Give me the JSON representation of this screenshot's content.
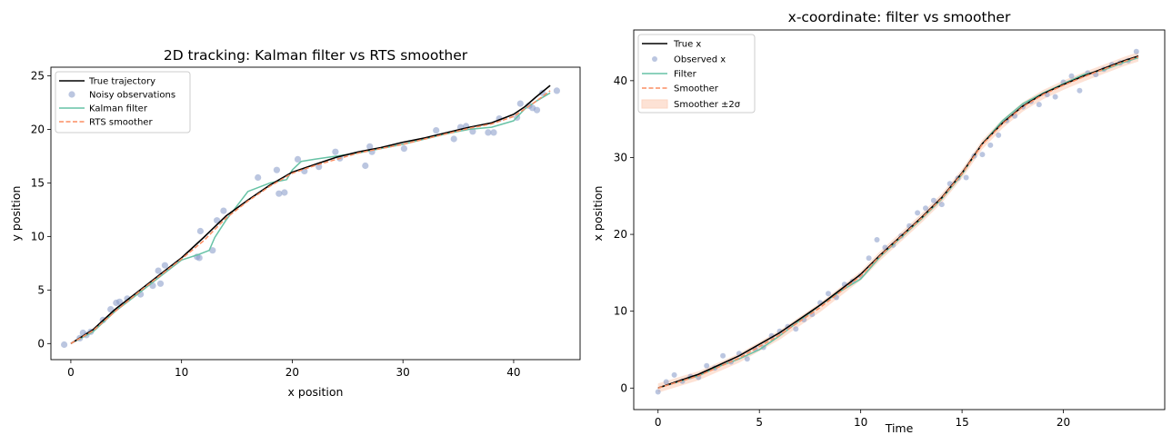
{
  "chart_data": [
    {
      "type": "line",
      "title": "2D tracking: Kalman filter vs RTS smoother",
      "xlabel": "x position",
      "ylabel": "y position",
      "xlim": [
        -1.8,
        46
      ],
      "ylim": [
        -1.5,
        25.8
      ],
      "xticks": [
        0,
        10,
        20,
        30,
        40
      ],
      "yticks": [
        0,
        5,
        10,
        15,
        20,
        25
      ],
      "grid": false,
      "legend_position": "top-left",
      "colors": {
        "truth": "#000000",
        "obs": "#8da0cb",
        "filter": "#66c2a5",
        "smoother": "#fc8d62"
      },
      "legend": [
        "True trajectory",
        "Noisy observations",
        "Kalman filter",
        "RTS smoother"
      ],
      "series": [
        {
          "name": "True trajectory",
          "style": "solid",
          "x": [
            0,
            2,
            4,
            6,
            8,
            10,
            12,
            14,
            16,
            18,
            20,
            22,
            24,
            26,
            28,
            30,
            32,
            34,
            36,
            38,
            40,
            41,
            42,
            43.3
          ],
          "y": [
            0,
            1.3,
            3.2,
            4.8,
            6.4,
            8.0,
            9.9,
            11.9,
            13.4,
            14.8,
            16.0,
            16.7,
            17.4,
            17.9,
            18.3,
            18.8,
            19.2,
            19.7,
            20.2,
            20.6,
            21.4,
            22.1,
            23.0,
            24.1
          ]
        },
        {
          "name": "Kalman filter",
          "style": "solid",
          "x": [
            0,
            2,
            4,
            6,
            8,
            10,
            11.5,
            12.5,
            13,
            14,
            16,
            18,
            19.5,
            20,
            20.8,
            22,
            24,
            26,
            28,
            30,
            32,
            34,
            36,
            38,
            40,
            41,
            42,
            43.3
          ],
          "y": [
            0,
            1.1,
            3.0,
            4.6,
            6.2,
            7.8,
            8.3,
            8.7,
            9.9,
            11.5,
            14.2,
            15.0,
            15.3,
            16.2,
            17.0,
            17.2,
            17.5,
            17.8,
            18.2,
            18.6,
            19.1,
            19.6,
            20.0,
            20.2,
            20.8,
            21.9,
            22.6,
            23.4
          ]
        },
        {
          "name": "RTS smoother",
          "style": "dashed",
          "x": [
            0,
            2,
            4,
            6,
            8,
            10,
            12,
            14,
            16,
            18,
            20,
            22,
            24,
            26,
            28,
            30,
            32,
            34,
            36,
            38,
            40,
            41,
            42,
            43.3
          ],
          "y": [
            0,
            1.2,
            3.0,
            4.7,
            6.3,
            7.9,
            9.6,
            11.7,
            13.3,
            14.7,
            15.9,
            16.6,
            17.2,
            17.8,
            18.2,
            18.6,
            19.1,
            19.6,
            20.1,
            20.5,
            21.2,
            21.9,
            22.6,
            23.6
          ]
        },
        {
          "name": "Noisy observations",
          "style": "scatter",
          "x": [
            -0.6,
            0.8,
            1.1,
            1.4,
            1.8,
            2.9,
            3.6,
            4.1,
            4.4,
            5.1,
            6.3,
            7.4,
            7.9,
            8.1,
            8.5,
            11.4,
            11.6,
            11.7,
            12.8,
            13.2,
            13.8,
            16.9,
            18.6,
            18.8,
            19.3,
            20.5,
            21.1,
            22.4,
            23.9,
            24.3,
            26.6,
            27.0,
            27.2,
            30.1,
            33.0,
            34.6,
            35.2,
            35.7,
            36.3,
            37.7,
            38.2,
            38.7,
            40.3,
            40.6,
            41.4,
            41.7,
            42.1,
            42.6,
            43.9
          ],
          "y": [
            -0.1,
            0.5,
            1.0,
            0.8,
            1.1,
            2.2,
            3.2,
            3.8,
            3.9,
            4.2,
            4.6,
            5.4,
            6.8,
            5.6,
            7.3,
            8.1,
            8.0,
            10.5,
            8.7,
            11.5,
            12.4,
            15.5,
            16.2,
            14.0,
            14.1,
            17.2,
            16.1,
            16.5,
            17.9,
            17.3,
            16.6,
            18.4,
            17.9,
            18.2,
            19.9,
            19.1,
            20.2,
            20.3,
            19.8,
            19.7,
            19.7,
            21.0,
            21.1,
            22.4,
            22.2,
            22.0,
            21.8,
            23.4,
            23.6
          ]
        }
      ]
    },
    {
      "type": "line",
      "title": "x-coordinate: filter vs smoother",
      "xlabel": "Time",
      "ylabel": "x position",
      "xlim": [
        -1.2,
        25.0
      ],
      "ylim": [
        -2.8,
        46.6
      ],
      "xticks": [
        0,
        5,
        10,
        15,
        20
      ],
      "yticks": [
        0,
        10,
        20,
        30,
        40
      ],
      "grid": false,
      "legend_position": "top-left",
      "colors": {
        "truth": "#000000",
        "obs": "#8da0cb",
        "filter": "#66c2a5",
        "smoother": "#fc8d62",
        "band": "#fcd5c3"
      },
      "legend": [
        "True x",
        "Observed x",
        "Filter",
        "Smoother",
        "Smoother ±2σ"
      ],
      "series": [
        {
          "name": "True x",
          "style": "solid",
          "x": [
            0,
            2,
            4,
            6,
            8,
            10,
            11,
            12,
            13,
            14,
            15,
            16,
            17,
            18,
            19,
            20,
            21,
            22,
            23,
            23.7
          ],
          "y": [
            0,
            1.8,
            4.2,
            7.2,
            10.8,
            14.8,
            17.4,
            19.8,
            22.2,
            24.8,
            28.0,
            31.8,
            34.5,
            36.7,
            38.3,
            39.5,
            40.6,
            41.6,
            42.6,
            43.2
          ]
        },
        {
          "name": "Filter",
          "style": "solid",
          "x": [
            0,
            1,
            2,
            3,
            4,
            5,
            6,
            7,
            8,
            9,
            10,
            11,
            12,
            13,
            14,
            15,
            16,
            17,
            18,
            19,
            20,
            21,
            22,
            23,
            23.7
          ],
          "y": [
            0,
            0.8,
            1.6,
            2.8,
            3.8,
            5.0,
            6.8,
            8.8,
            10.8,
            12.6,
            14.2,
            17.2,
            19.6,
            22.0,
            24.6,
            27.8,
            31.8,
            34.8,
            37.0,
            38.4,
            39.6,
            40.8,
            41.4,
            42.4,
            43.0
          ]
        },
        {
          "name": "Smoother",
          "style": "dashed",
          "x": [
            0,
            2,
            4,
            6,
            8,
            10,
            11,
            12,
            13,
            14,
            15,
            16,
            17,
            18,
            19,
            20,
            21,
            22,
            23,
            23.7
          ],
          "y": [
            0,
            1.6,
            3.9,
            6.9,
            10.5,
            14.6,
            17.3,
            19.7,
            22.1,
            24.7,
            27.9,
            31.7,
            34.4,
            36.6,
            38.2,
            39.4,
            40.5,
            41.5,
            42.5,
            43.1
          ]
        },
        {
          "name": "Smoother ±2σ",
          "style": "band",
          "halfwidth": 0.6,
          "x": [
            0,
            2,
            4,
            6,
            8,
            10,
            11,
            12,
            13,
            14,
            15,
            16,
            17,
            18,
            19,
            20,
            21,
            22,
            23,
            23.7
          ],
          "y": [
            0,
            1.6,
            3.9,
            6.9,
            10.5,
            14.6,
            17.3,
            19.7,
            22.1,
            24.7,
            27.9,
            31.7,
            34.4,
            36.6,
            38.2,
            39.4,
            40.5,
            41.5,
            42.5,
            43.1
          ]
        },
        {
          "name": "Observed x",
          "style": "scatter",
          "x": [
            0,
            0.4,
            0.8,
            1.2,
            1.6,
            2.0,
            2.4,
            2.8,
            3.2,
            3.6,
            4.0,
            4.4,
            4.8,
            5.2,
            5.6,
            6.0,
            6.4,
            6.8,
            7.2,
            7.6,
            8.0,
            8.4,
            8.8,
            9.2,
            9.6,
            10.0,
            10.4,
            10.8,
            11.2,
            11.6,
            12.0,
            12.4,
            12.8,
            13.2,
            13.6,
            14.0,
            14.4,
            14.8,
            15.2,
            15.6,
            16.0,
            16.4,
            16.8,
            17.2,
            17.6,
            18.0,
            18.4,
            18.8,
            19.2,
            19.6,
            20.0,
            20.4,
            20.8,
            21.2,
            21.6,
            22.0,
            22.4,
            22.8,
            23.2,
            23.6
          ],
          "y": [
            -0.5,
            0.8,
            1.7,
            0.9,
            1.5,
            1.4,
            2.9,
            2.6,
            4.2,
            3.4,
            4.5,
            3.8,
            5.1,
            5.3,
            6.8,
            7.4,
            8.0,
            7.7,
            8.9,
            9.6,
            11.1,
            12.3,
            11.8,
            13.5,
            13.9,
            14.6,
            16.9,
            19.3,
            18.3,
            18.6,
            19.8,
            21.1,
            22.8,
            23.4,
            24.4,
            23.9,
            26.6,
            27.3,
            27.4,
            30.2,
            30.4,
            31.6,
            32.9,
            34.8,
            35.4,
            36.6,
            37.3,
            36.9,
            38.2,
            37.9,
            39.8,
            40.6,
            38.7,
            41.0,
            40.8,
            41.5,
            42.1,
            42.3,
            42.6,
            43.8
          ]
        }
      ]
    }
  ]
}
